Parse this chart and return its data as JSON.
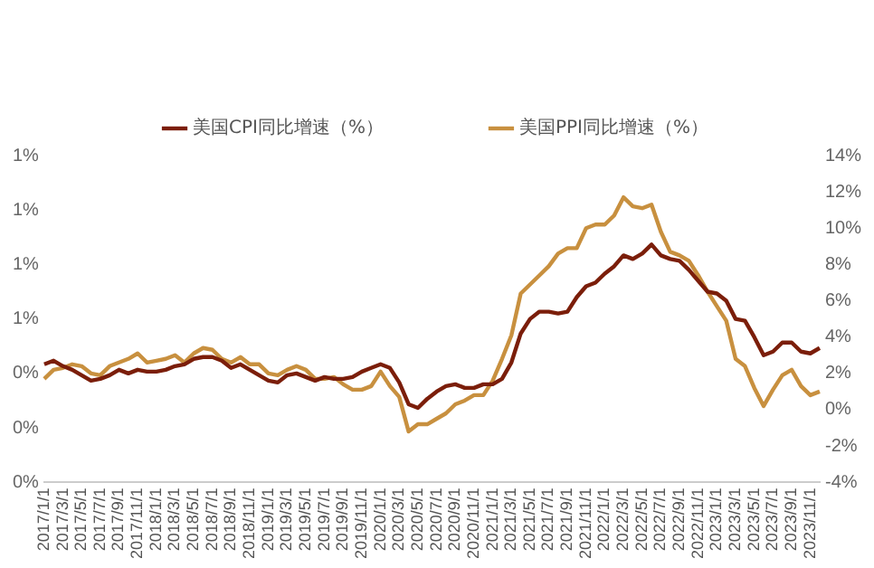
{
  "chart_data": {
    "type": "line",
    "categories": [
      "2017/1/1",
      null,
      "2017/3/1",
      null,
      "2017/5/1",
      null,
      "2017/7/1",
      null,
      "2017/9/1",
      null,
      "2017/11/1",
      null,
      "2018/1/1",
      null,
      "2018/3/1",
      null,
      "2018/5/1",
      null,
      "2018/7/1",
      null,
      "2018/9/1",
      null,
      "2018/11/1",
      null,
      "2019/1/1",
      null,
      "2019/3/1",
      null,
      "2019/5/1",
      null,
      "2019/7/1",
      null,
      "2019/9/1",
      null,
      "2019/11/1",
      null,
      "2020/1/1",
      null,
      "2020/3/1",
      null,
      "2020/5/1",
      null,
      "2020/7/1",
      null,
      "2020/9/1",
      null,
      "2020/11/1",
      null,
      "2021/1/1",
      null,
      "2021/3/1",
      null,
      "2021/5/1",
      null,
      "2021/7/1",
      null,
      "2021/9/1",
      null,
      "2021/11/1",
      null,
      "2022/1/1",
      null,
      "2022/3/1",
      null,
      "2022/5/1",
      null,
      "2022/7/1",
      null,
      "2022/9/1",
      null,
      "2022/11/1",
      null,
      "2023/1/1",
      null,
      "2023/3/1",
      null,
      "2023/5/1",
      null,
      "2023/7/1",
      null,
      "2023/9/1",
      null,
      "2023/11/1",
      null
    ],
    "series": [
      {
        "name": "美国CPI同比增速（%）",
        "color": "#7b1e0a",
        "axis": "y2",
        "values": [
          2.5,
          2.7,
          2.4,
          2.2,
          1.9,
          1.6,
          1.7,
          1.9,
          2.2,
          2.0,
          2.2,
          2.1,
          2.1,
          2.2,
          2.4,
          2.5,
          2.8,
          2.9,
          2.9,
          2.7,
          2.3,
          2.5,
          2.2,
          1.9,
          1.6,
          1.5,
          1.9,
          2.0,
          1.8,
          1.6,
          1.8,
          1.7,
          1.7,
          1.8,
          2.1,
          2.3,
          2.5,
          2.3,
          1.5,
          0.3,
          0.1,
          0.6,
          1.0,
          1.3,
          1.4,
          1.2,
          1.2,
          1.4,
          1.4,
          1.7,
          2.6,
          4.2,
          5.0,
          5.4,
          5.4,
          5.3,
          5.4,
          6.2,
          6.8,
          7.0,
          7.5,
          7.9,
          8.5,
          8.3,
          8.6,
          9.1,
          8.5,
          8.3,
          8.2,
          7.7,
          7.1,
          6.5,
          6.4,
          6.0,
          5.0,
          4.9,
          4.0,
          3.0,
          3.2,
          3.7,
          3.7,
          3.2,
          3.1,
          3.4
        ]
      },
      {
        "name": "美国PPI同比增速（%）",
        "color": "#c8903f",
        "axis": "y2",
        "values": [
          1.7,
          2.2,
          2.3,
          2.5,
          2.4,
          2.0,
          1.9,
          2.4,
          2.6,
          2.8,
          3.1,
          2.6,
          2.7,
          2.8,
          3.0,
          2.6,
          3.1,
          3.4,
          3.3,
          2.8,
          2.6,
          2.9,
          2.5,
          2.5,
          2.0,
          1.9,
          2.2,
          2.4,
          2.2,
          1.7,
          1.7,
          1.8,
          1.4,
          1.1,
          1.1,
          1.3,
          2.1,
          1.3,
          0.7,
          -1.2,
          -0.8,
          -0.8,
          -0.5,
          -0.2,
          0.3,
          0.5,
          0.8,
          0.8,
          1.6,
          2.8,
          4.1,
          6.4,
          6.9,
          7.4,
          7.9,
          8.6,
          8.9,
          8.9,
          10.0,
          10.2,
          10.2,
          10.7,
          11.7,
          11.2,
          11.1,
          11.3,
          9.8,
          8.7,
          8.5,
          8.2,
          7.4,
          6.5,
          5.7,
          4.9,
          2.8,
          2.4,
          1.2,
          0.2,
          1.1,
          1.9,
          2.2,
          1.3,
          0.8,
          1.0
        ]
      }
    ],
    "ylim": [
      0,
      1.2
    ],
    "yticks": [
      {
        "value": 0,
        "label": "0%"
      },
      {
        "value": 0.2,
        "label": "0%"
      },
      {
        "value": 0.4,
        "label": "0%"
      },
      {
        "value": 0.6,
        "label": "1%"
      },
      {
        "value": 0.8,
        "label": "1%"
      },
      {
        "value": 1.0,
        "label": "1%"
      },
      {
        "value": 1.2,
        "label": "1%"
      }
    ],
    "y2lim": [
      -4,
      14
    ],
    "y2ticks": [
      {
        "value": -4,
        "label": "-4%"
      },
      {
        "value": -2,
        "label": "-2%"
      },
      {
        "value": 0,
        "label": "0%"
      },
      {
        "value": 2,
        "label": "2%"
      },
      {
        "value": 4,
        "label": "4%"
      },
      {
        "value": 6,
        "label": "6%"
      },
      {
        "value": 8,
        "label": "8%"
      },
      {
        "value": 10,
        "label": "10%"
      },
      {
        "value": 12,
        "label": "12%"
      },
      {
        "value": 14,
        "label": "14%"
      }
    ],
    "grid": false,
    "legend": "top",
    "marker": "none",
    "line_style": "solid"
  }
}
